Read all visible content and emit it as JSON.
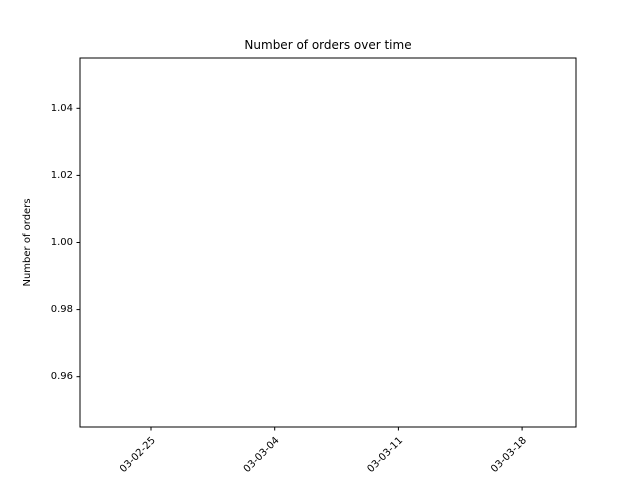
{
  "chart_data": {
    "type": "line",
    "title": "Number of orders over time",
    "xlabel": "",
    "ylabel": "Number of orders",
    "x_ticks": [
      "03-02-25",
      "03-03-04",
      "03-03-11",
      "03-03-18"
    ],
    "y_ticks": [
      "0.96",
      "0.98",
      "1.00",
      "1.02",
      "1.04"
    ],
    "y_tick_values": [
      0.96,
      0.98,
      1.0,
      1.02,
      1.04
    ],
    "ylim": [
      0.945,
      1.055
    ],
    "grid": false,
    "series": [],
    "colors": {
      "axis": "#000000",
      "background": "#ffffff"
    }
  }
}
